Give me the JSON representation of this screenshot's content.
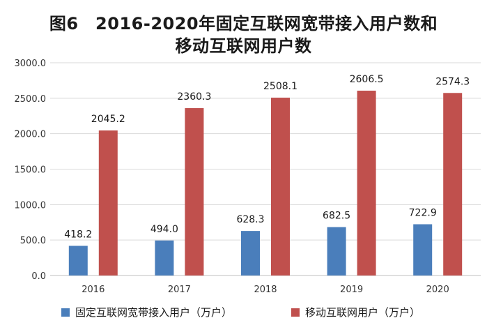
{
  "title_line1": "图6　2016-2020年固定互联网宽带接入用户数和",
  "title_line2": "移动互联网用户数",
  "chart_data": {
    "type": "bar",
    "categories": [
      "2016",
      "2017",
      "2018",
      "2019",
      "2020"
    ],
    "series": [
      {
        "name": "固定互联网宽带接入用户（万户）",
        "color": "#4a7ebb",
        "values": [
          418.2,
          494.0,
          628.3,
          682.5,
          722.9
        ]
      },
      {
        "name": "移动互联网用户（万户）",
        "color": "#c0504d",
        "values": [
          2045.2,
          2360.3,
          2508.1,
          2606.5,
          2574.3
        ]
      }
    ],
    "ylim": [
      0,
      3000
    ],
    "yticks": [
      "0.0",
      "500.0",
      "1000.0",
      "1500.0",
      "2000.0",
      "2500.0",
      "3000.0"
    ],
    "grid": true,
    "legend": "bottom"
  }
}
